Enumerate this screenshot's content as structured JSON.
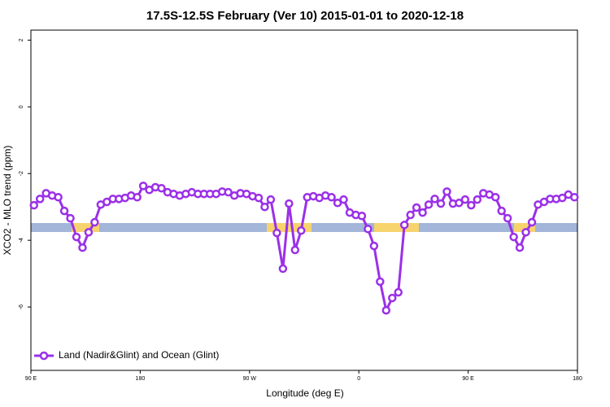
{
  "chart_data": {
    "type": "line",
    "title": "17.5S-12.5S February (Ver 10)   2015-01-01 to 2020-12-18",
    "x_label": "Longitude (deg E)",
    "y_label": "XCO2 - MLO trend (ppm)",
    "xlim": [
      90,
      540
    ],
    "ylim": [
      -7.9,
      2.3
    ],
    "xticks": [
      {
        "value": 90,
        "label": "90 E"
      },
      180,
      {
        "value": 270,
        "label": "90 W"
      },
      {
        "value": 360,
        "label": "0"
      },
      {
        "value": 450,
        "label": "90 E"
      },
      {
        "value": 540,
        "label": "180"
      }
    ],
    "yticks": [
      -6,
      -4,
      -2,
      0,
      2
    ],
    "legend": "bottom-left",
    "x": [
      92.5,
      97.5,
      102.5,
      107.5,
      112.5,
      117.5,
      122.5,
      127.5,
      132.5,
      137.5,
      142.5,
      147.5,
      152.5,
      157.5,
      162.5,
      167.5,
      172.5,
      177.5,
      182.5,
      187.5,
      192.5,
      197.5,
      202.5,
      207.5,
      212.5,
      217.5,
      222.5,
      227.5,
      232.5,
      237.5,
      242.5,
      247.5,
      252.5,
      257.5,
      262.5,
      267.5,
      272.5,
      277.5,
      282.5,
      287.5,
      292.5,
      297.5,
      302.5,
      307.5,
      312.5,
      317.5,
      322.5,
      327.5,
      332.5,
      337.5,
      342.5,
      347.5,
      352.5,
      357.5,
      362.5,
      367.5,
      372.5,
      377.5,
      382.5,
      387.5,
      392.5,
      397.5,
      402.5,
      407.5,
      412.5,
      417.5,
      422.5,
      427.5,
      432.5,
      437.5,
      442.5,
      447.5,
      452.5,
      457.5,
      462.5,
      467.5,
      472.5,
      477.5,
      482.5,
      487.5,
      492.5,
      497.5,
      502.5,
      507.5,
      512.5,
      517.5,
      522.5,
      527.5,
      532.5,
      537.5
    ],
    "series": [
      {
        "name": "Land (Nadir&Glint) and Ocean (Glint)",
        "color": "#9b30e8",
        "values": [
          -2.95,
          -2.76,
          -2.59,
          -2.66,
          -2.71,
          -3.12,
          -3.34,
          -3.9,
          -4.22,
          -3.76,
          -3.46,
          -2.93,
          -2.85,
          -2.76,
          -2.76,
          -2.73,
          -2.66,
          -2.71,
          -2.37,
          -2.49,
          -2.41,
          -2.44,
          -2.56,
          -2.61,
          -2.66,
          -2.61,
          -2.56,
          -2.61,
          -2.61,
          -2.61,
          -2.61,
          -2.54,
          -2.56,
          -2.66,
          -2.59,
          -2.61,
          -2.68,
          -2.73,
          -3.0,
          -2.78,
          -3.78,
          -4.85,
          -2.9,
          -4.29,
          -3.71,
          -2.71,
          -2.68,
          -2.73,
          -2.66,
          -2.71,
          -2.88,
          -2.78,
          -3.17,
          -3.24,
          -3.27,
          -3.66,
          -4.17,
          -5.24,
          -6.1,
          -5.73,
          -5.56,
          -3.54,
          -3.24,
          -3.02,
          -3.17,
          -2.93,
          -2.76,
          -2.9,
          -2.54,
          -2.9,
          -2.88,
          -2.78,
          -2.95,
          -2.78,
          -2.59,
          -2.63,
          -2.71,
          -3.12,
          -3.34,
          -3.9,
          -4.22,
          -3.76,
          -3.46,
          -2.93,
          -2.85,
          -2.76,
          -2.76,
          -2.73,
          -2.63,
          -2.71
        ]
      }
    ]
  }
}
